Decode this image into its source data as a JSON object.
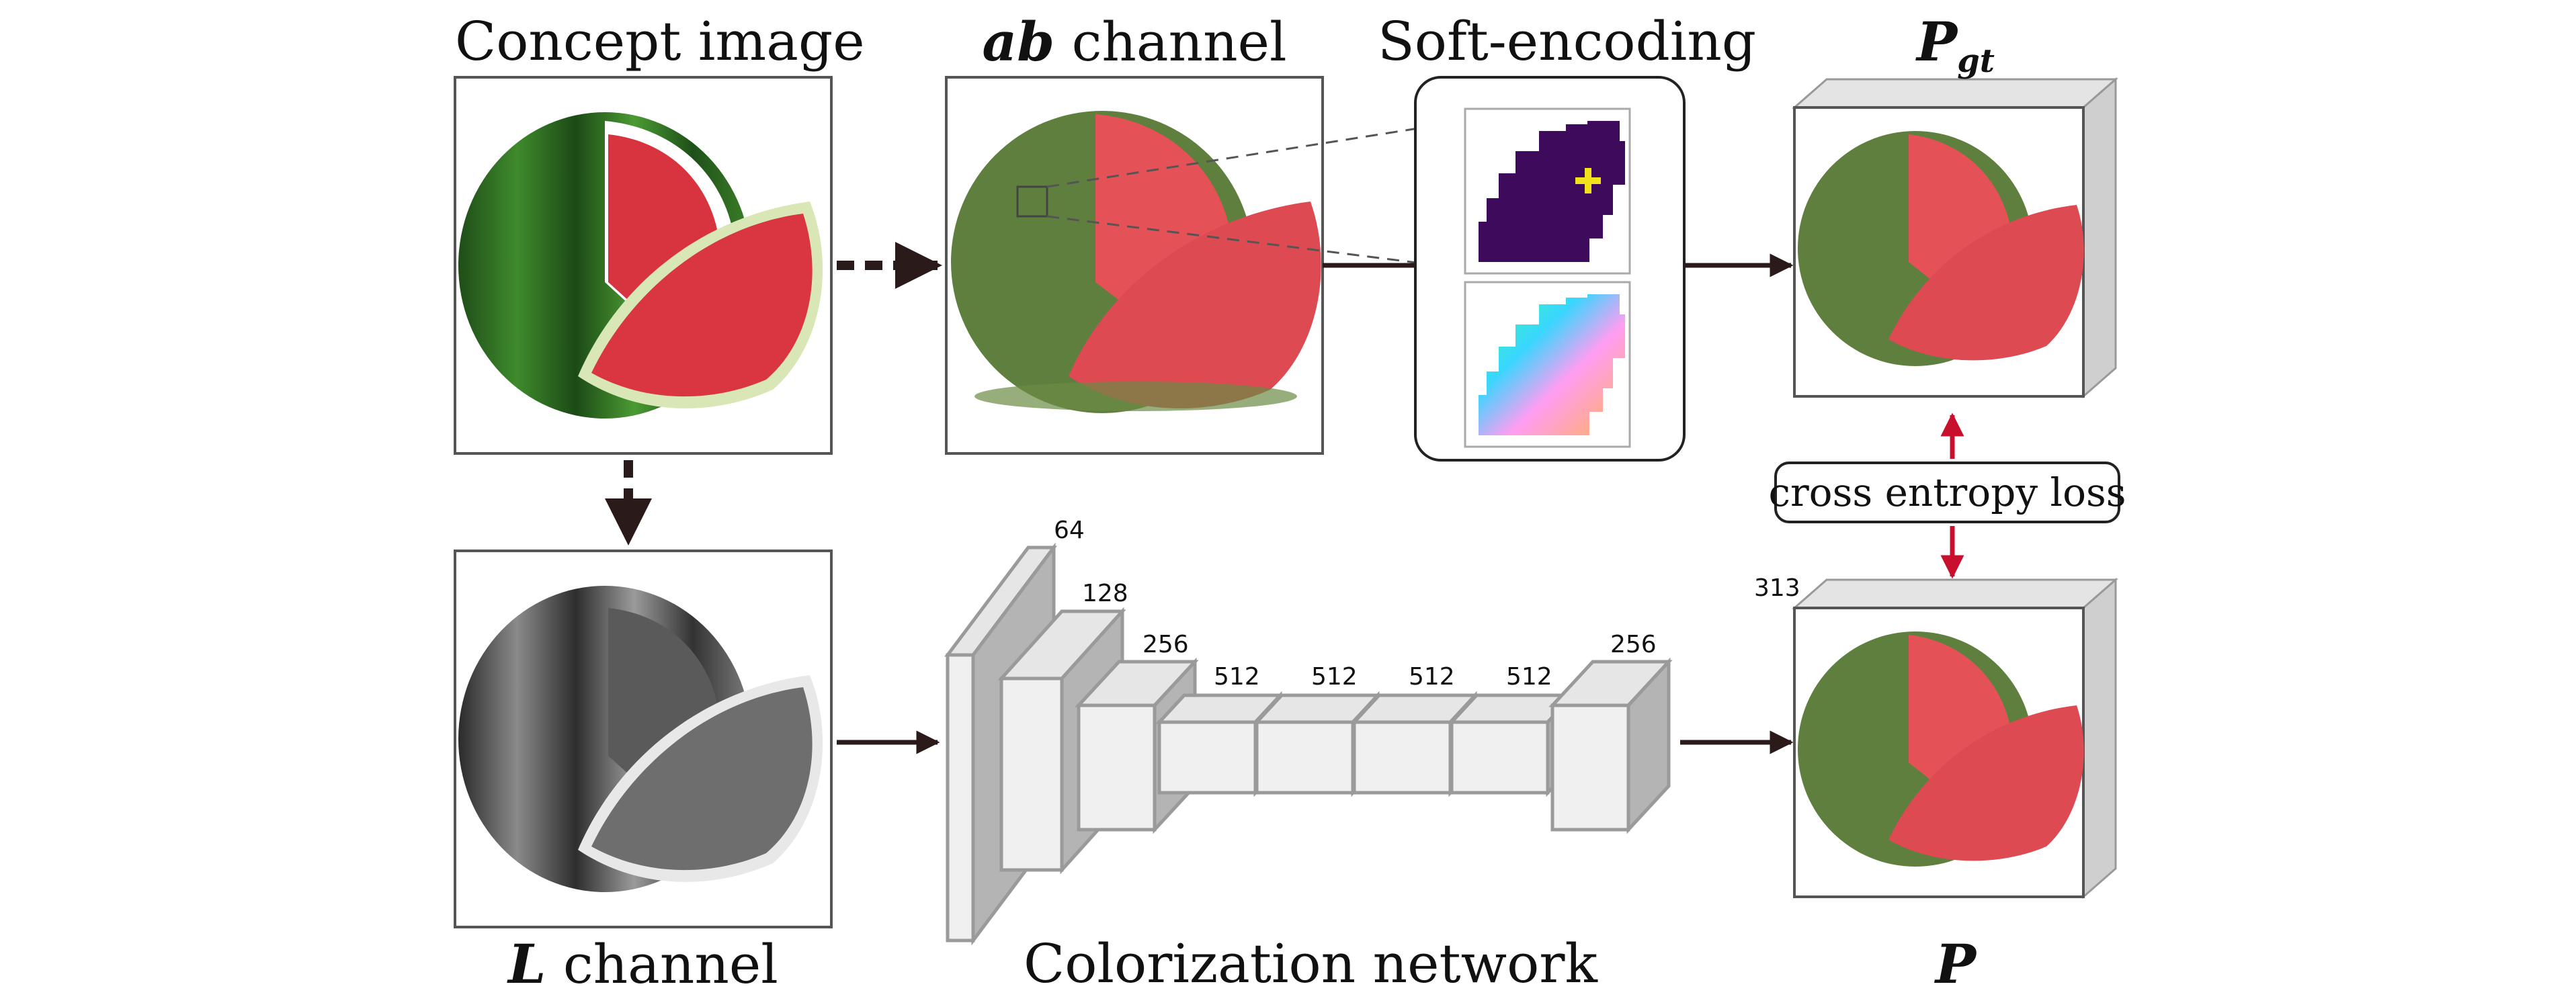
{
  "labels": {
    "concept_image": "Concept image",
    "ab_italic": "ab",
    "ab_rest": " channel",
    "soft_encoding": "Soft-encoding",
    "p_gt_main": "P",
    "p_gt_sub": "gt",
    "l_italic": "L",
    "l_rest": " channel",
    "colorization_network": "Colorization network",
    "p": "P",
    "cross_entropy_loss": "cross entropy loss"
  },
  "network": {
    "input_channels": "64",
    "layers": [
      "128",
      "256",
      "512",
      "512",
      "512",
      "512",
      "256"
    ],
    "output_channels": "313"
  },
  "colors": {
    "arrow": "#2a1a1a",
    "loss_arrow": "#c8102e",
    "block_fill": "#f0f0f0",
    "block_side": "#b4b4b4",
    "block_stroke": "#9a9a9a",
    "gamut_purple": "#3d0a5c",
    "marker_yellow": "#f2e21c"
  }
}
